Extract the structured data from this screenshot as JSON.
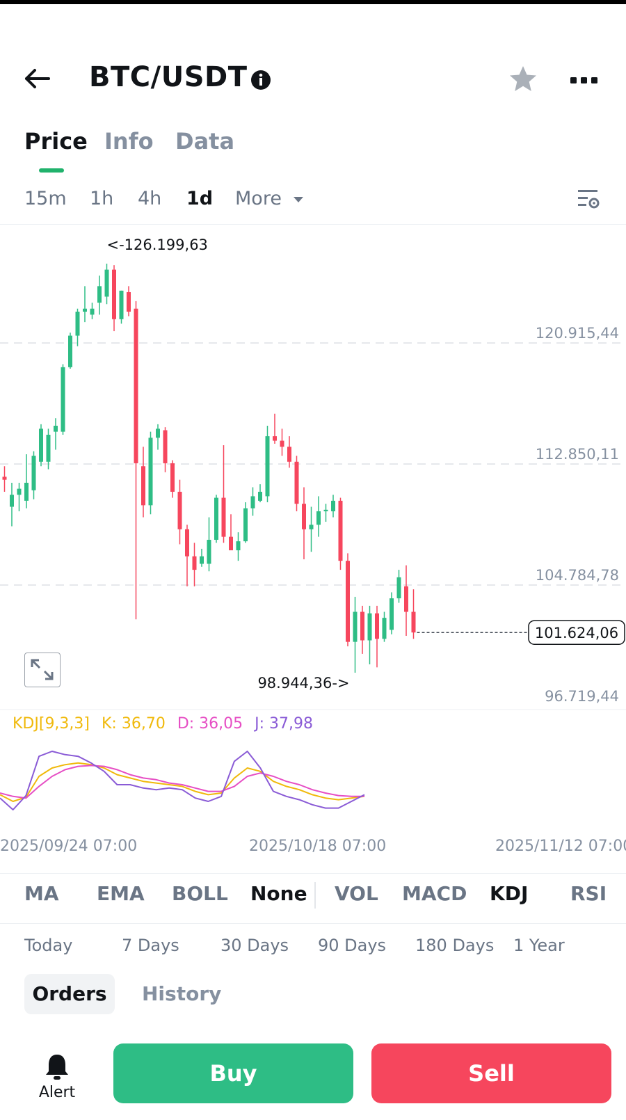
{
  "header": {
    "title": "BTC/USDT",
    "icons": {
      "back": "arrow-left-icon",
      "info": "info-icon",
      "favorite": "star-icon",
      "more": "more-dots-icon"
    }
  },
  "tabs": [
    {
      "label": "Price",
      "active": true
    },
    {
      "label": "Info",
      "active": false
    },
    {
      "label": "Data",
      "active": false
    }
  ],
  "intervals": [
    {
      "label": "15m",
      "active": false
    },
    {
      "label": "1h",
      "active": false
    },
    {
      "label": "4h",
      "active": false
    },
    {
      "label": "1d",
      "active": true
    }
  ],
  "more_interval": "More",
  "colors": {
    "up": "#2ebd85",
    "down": "#f6465d",
    "accent": "#20b26c",
    "k_line": "#f0b90b",
    "d_line": "#e64ec4",
    "j_line": "#8a5bd6"
  },
  "chart_data": [
    {
      "type": "candlestick",
      "y_axis_labels": [
        "120.915,44",
        "112.850,11",
        "104.784,78",
        "96.719,44"
      ],
      "y_axis_values": [
        120915.44,
        112850.11,
        104784.78,
        96719.44
      ],
      "current_price_label": "101.624,06",
      "current_price": 101624.06,
      "high_annotation": "<-126.199,63",
      "low_annotation": "98.944,36->",
      "grid": "horizontal dashed",
      "candles": [
        {
          "o": 112000,
          "h": 112700,
          "l": 111000,
          "c": 111800
        },
        {
          "o": 110000,
          "h": 111600,
          "l": 108700,
          "c": 110800
        },
        {
          "o": 110800,
          "h": 111600,
          "l": 109700,
          "c": 111200
        },
        {
          "o": 110400,
          "h": 113500,
          "l": 109900,
          "c": 111600
        },
        {
          "o": 111100,
          "h": 113700,
          "l": 110500,
          "c": 113400
        },
        {
          "o": 113000,
          "h": 115500,
          "l": 112700,
          "c": 115200
        },
        {
          "o": 113000,
          "h": 115200,
          "l": 112500,
          "c": 114800
        },
        {
          "o": 115000,
          "h": 115900,
          "l": 113800,
          "c": 115400
        },
        {
          "o": 115000,
          "h": 119500,
          "l": 114800,
          "c": 119300
        },
        {
          "o": 119300,
          "h": 121600,
          "l": 119200,
          "c": 121400
        },
        {
          "o": 121400,
          "h": 123200,
          "l": 120700,
          "c": 123000
        },
        {
          "o": 123000,
          "h": 124700,
          "l": 122300,
          "c": 123200
        },
        {
          "o": 122800,
          "h": 123600,
          "l": 122500,
          "c": 123200
        },
        {
          "o": 123600,
          "h": 125400,
          "l": 122800,
          "c": 124700
        },
        {
          "o": 124000,
          "h": 126200,
          "l": 123500,
          "c": 125800
        },
        {
          "o": 125800,
          "h": 126100,
          "l": 121700,
          "c": 122500
        },
        {
          "o": 122500,
          "h": 124400,
          "l": 122200,
          "c": 124400
        },
        {
          "o": 124300,
          "h": 124700,
          "l": 122700,
          "c": 123000
        },
        {
          "o": 123200,
          "h": 123700,
          "l": 102500,
          "c": 112900
        },
        {
          "o": 112700,
          "h": 114000,
          "l": 109300,
          "c": 110100
        },
        {
          "o": 110100,
          "h": 115000,
          "l": 109500,
          "c": 114600
        },
        {
          "o": 114600,
          "h": 115500,
          "l": 113800,
          "c": 115200
        },
        {
          "o": 115100,
          "h": 115300,
          "l": 112300,
          "c": 112900
        },
        {
          "o": 112900,
          "h": 113100,
          "l": 110600,
          "c": 111000
        },
        {
          "o": 111000,
          "h": 111800,
          "l": 107500,
          "c": 108500
        },
        {
          "o": 108500,
          "h": 108800,
          "l": 104700,
          "c": 106700
        },
        {
          "o": 106700,
          "h": 107600,
          "l": 104700,
          "c": 105800
        },
        {
          "o": 106200,
          "h": 107200,
          "l": 106000,
          "c": 106700
        },
        {
          "o": 106200,
          "h": 109300,
          "l": 105700,
          "c": 107800
        },
        {
          "o": 107800,
          "h": 110800,
          "l": 107600,
          "c": 110600
        },
        {
          "o": 110600,
          "h": 114100,
          "l": 107600,
          "c": 108000
        },
        {
          "o": 108000,
          "h": 109500,
          "l": 107300,
          "c": 107100
        },
        {
          "o": 107100,
          "h": 108300,
          "l": 106400,
          "c": 107700
        },
        {
          "o": 107700,
          "h": 110300,
          "l": 107600,
          "c": 109900
        },
        {
          "o": 109900,
          "h": 111300,
          "l": 109400,
          "c": 110700
        },
        {
          "o": 110400,
          "h": 111500,
          "l": 110300,
          "c": 111000
        },
        {
          "o": 110700,
          "h": 115400,
          "l": 110300,
          "c": 114700
        },
        {
          "o": 114700,
          "h": 116200,
          "l": 114200,
          "c": 114400
        },
        {
          "o": 114400,
          "h": 115200,
          "l": 113400,
          "c": 114000
        },
        {
          "o": 114000,
          "h": 114700,
          "l": 112600,
          "c": 113000
        },
        {
          "o": 113000,
          "h": 113400,
          "l": 109700,
          "c": 110200
        },
        {
          "o": 110200,
          "h": 111300,
          "l": 106500,
          "c": 108500
        },
        {
          "o": 108500,
          "h": 110000,
          "l": 107000,
          "c": 108800
        },
        {
          "o": 108800,
          "h": 110700,
          "l": 108000,
          "c": 109700
        },
        {
          "o": 109700,
          "h": 110200,
          "l": 109000,
          "c": 109800
        },
        {
          "o": 109700,
          "h": 110800,
          "l": 109300,
          "c": 110400
        },
        {
          "o": 110400,
          "h": 110600,
          "l": 105800,
          "c": 106400
        },
        {
          "o": 106400,
          "h": 106900,
          "l": 100700,
          "c": 101000
        },
        {
          "o": 101000,
          "h": 104000,
          "l": 98944,
          "c": 103000
        },
        {
          "o": 103000,
          "h": 103400,
          "l": 100200,
          "c": 101100
        },
        {
          "o": 101100,
          "h": 103400,
          "l": 99500,
          "c": 102900
        },
        {
          "o": 102900,
          "h": 103400,
          "l": 99300,
          "c": 101200
        },
        {
          "o": 101200,
          "h": 103000,
          "l": 101000,
          "c": 102600
        },
        {
          "o": 101800,
          "h": 104300,
          "l": 101500,
          "c": 103900
        },
        {
          "o": 103900,
          "h": 105800,
          "l": 103600,
          "c": 105300
        },
        {
          "o": 104700,
          "h": 106100,
          "l": 101400,
          "c": 103000
        },
        {
          "o": 103000,
          "h": 104500,
          "l": 101200,
          "c": 101624.06
        }
      ]
    },
    {
      "type": "line",
      "indicator": "KDJ",
      "legend": {
        "params": "KDJ[9,3,3]",
        "k": "K: 36,70",
        "d": "D: 36,05",
        "j": "J: 37,98"
      },
      "ylim": [
        0,
        100
      ],
      "series": [
        {
          "name": "K",
          "values": [
            38,
            30,
            35,
            60,
            70,
            74,
            76,
            74,
            70,
            62,
            58,
            54,
            52,
            50,
            48,
            42,
            38,
            40,
            58,
            70,
            66,
            54,
            48,
            44,
            38,
            34,
            32,
            34,
            36
          ]
        },
        {
          "name": "D",
          "values": [
            40,
            36,
            34,
            48,
            60,
            68,
            72,
            73,
            72,
            68,
            62,
            58,
            56,
            52,
            50,
            46,
            42,
            42,
            48,
            60,
            64,
            60,
            54,
            50,
            44,
            40,
            37,
            36,
            36
          ]
        },
        {
          "name": "J",
          "values": [
            34,
            20,
            37,
            84,
            90,
            86,
            84,
            76,
            66,
            50,
            50,
            46,
            44,
            46,
            44,
            34,
            30,
            36,
            78,
            90,
            70,
            42,
            36,
            32,
            26,
            22,
            22,
            30,
            38
          ]
        }
      ],
      "x_labels": [
        "2025/09/24 07:00",
        "2025/10/18 07:00",
        "2025/11/12 07:00"
      ]
    }
  ],
  "indicators": [
    {
      "label": "MA",
      "active": false
    },
    {
      "label": "EMA",
      "active": false
    },
    {
      "label": "BOLL",
      "active": false
    },
    {
      "label": "None",
      "active": true
    },
    {
      "label": "VOL",
      "active": false
    },
    {
      "label": "MACD",
      "active": false
    },
    {
      "label": "KDJ",
      "active": true
    },
    {
      "label": "RSI",
      "active": false
    }
  ],
  "ranges": [
    "Today",
    "7 Days",
    "30 Days",
    "90 Days",
    "180 Days",
    "1 Year"
  ],
  "order_tabs": [
    {
      "label": "Orders",
      "active": true
    },
    {
      "label": "History",
      "active": false
    }
  ],
  "bottom": {
    "alert_label": "Alert",
    "buy_label": "Buy",
    "sell_label": "Sell",
    "alert_icon": "bell-icon"
  }
}
